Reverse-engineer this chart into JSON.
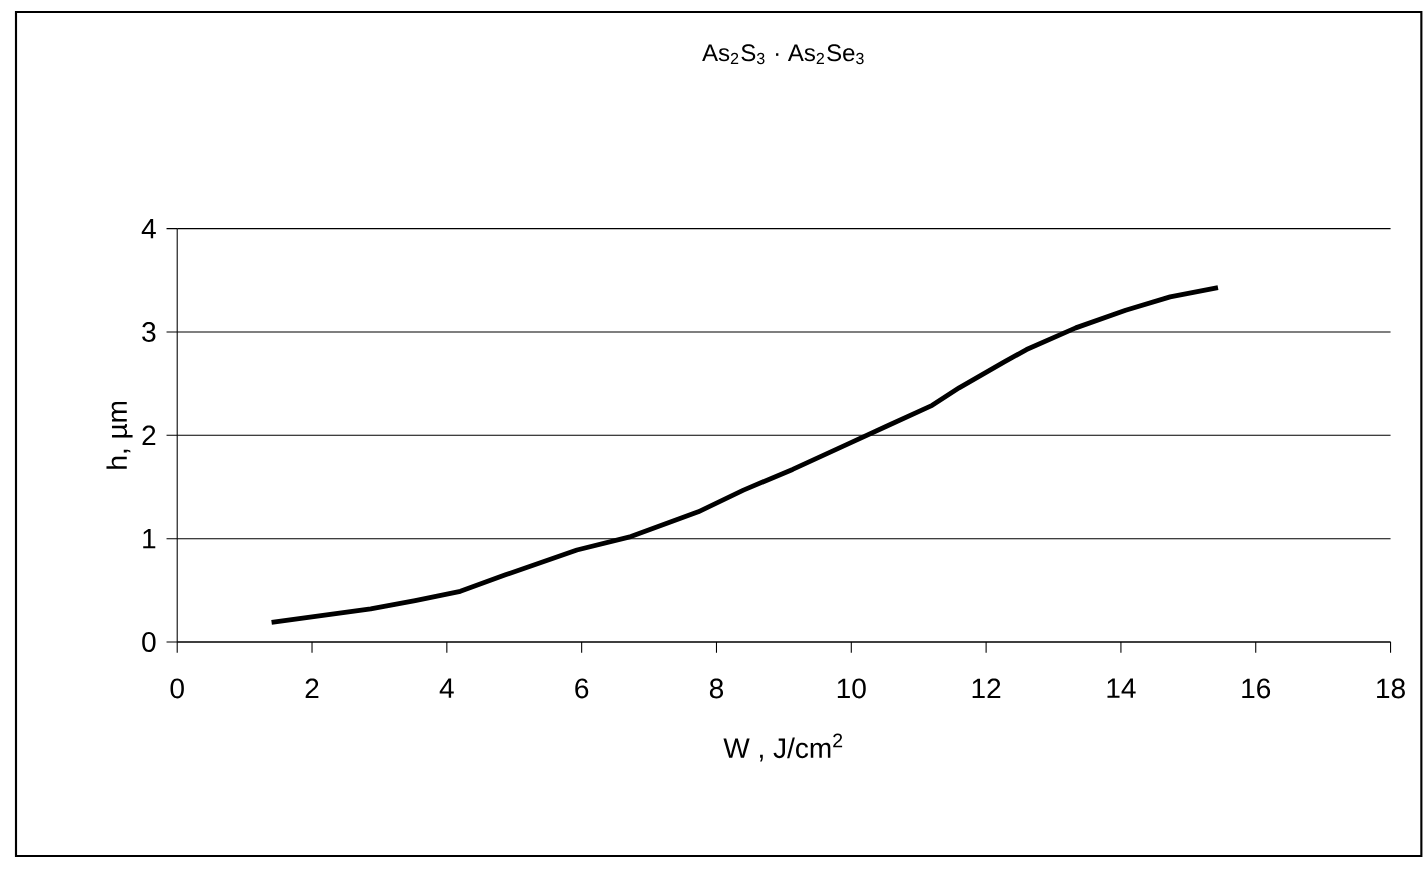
{
  "chart_data": {
    "type": "line",
    "title": "As$_{2}$S$_{3}$ · As$_{2}$Se$_{3}$",
    "xlabel": "W , J/cm$^{2}$",
    "ylabel": "h, µm",
    "x": [
      1.4,
      2.87,
      3.53,
      4.2,
      4.87,
      5.93,
      6.73,
      7.73,
      8.4,
      9.13,
      9.93,
      10.53,
      11.2,
      11.6,
      12.27,
      12.6,
      13.33,
      14.07,
      14.73,
      15.44
    ],
    "series": [
      {
        "color": "#000000",
        "values": [
          0.19,
          0.32,
          0.4,
          0.49,
          0.65,
          0.89,
          1.02,
          1.26,
          1.47,
          1.67,
          1.91,
          2.09,
          2.29,
          2.46,
          2.71,
          2.83,
          3.04,
          3.21,
          3.34,
          3.43
        ]
      }
    ],
    "xlim": [
      0,
      18
    ],
    "ylim": [
      0,
      4
    ],
    "xticks": [
      0,
      2,
      4,
      6,
      8,
      10,
      12,
      14,
      16,
      18
    ],
    "yticks": [
      0,
      1,
      2,
      3,
      4
    ],
    "grid": "y",
    "marker": "none",
    "line_style": "solid"
  }
}
